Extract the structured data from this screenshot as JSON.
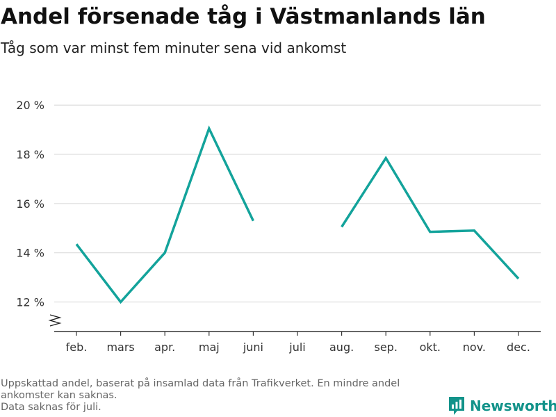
{
  "chart_data": {
    "type": "line",
    "title": "Andel försenade tåg i Västmanlands län",
    "subtitle": "Tåg som var minst fem minuter sena vid ankomst",
    "categories": [
      "feb.",
      "mars",
      "apr.",
      "maj",
      "juni",
      "juli",
      "aug.",
      "sep.",
      "okt.",
      "nov.",
      "dec."
    ],
    "series": [
      {
        "values": [
          14.35,
          12.0,
          14.0,
          19.05,
          15.3,
          null,
          15.05,
          17.85,
          14.85,
          14.9,
          12.95
        ],
        "color": "#13a39b"
      }
    ],
    "yticks": [
      12,
      14,
      16,
      18,
      20
    ],
    "ytick_labels": [
      "12 %",
      "14 %",
      "16 %",
      "18 %",
      "20 %"
    ],
    "ylim": [
      10.8,
      20.6
    ],
    "y_axis_break": true,
    "grid": true,
    "xlabel": "",
    "ylabel": ""
  },
  "footnote": {
    "line1": "Uppskattad andel, baserat på insamlad data från Trafikverket. En mindre andel ankomster kan saknas.",
    "line2": "Data saknas för juli."
  },
  "brand": {
    "name": "Newsworthy",
    "icon": "bar-chart-logo-icon",
    "color": "#13938a"
  }
}
